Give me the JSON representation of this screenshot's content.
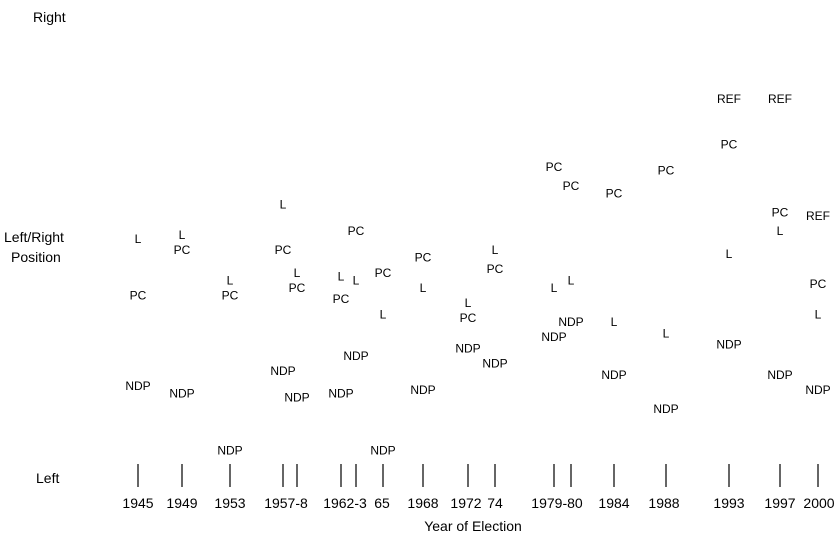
{
  "labels": {
    "right": "Right",
    "middle_line1": "Left/Right",
    "middle_line2": "Position",
    "left": "Left",
    "xlabel": "Year of Election"
  },
  "chart_data": {
    "type": "scatter",
    "title": "",
    "xlabel": "Year of Election",
    "ylabel": "Left/Right Position",
    "y_axis_anchors": [
      "Left",
      "Right"
    ],
    "ylim": [
      0,
      100
    ],
    "elections": [
      {
        "label": "1945",
        "points": [
          {
            "party": "L",
            "y": 58
          },
          {
            "party": "PC",
            "y": 43
          },
          {
            "party": "NDP",
            "y": 19
          }
        ]
      },
      {
        "label": "1949",
        "points": [
          {
            "party": "L",
            "y": 59
          },
          {
            "party": "PC",
            "y": 55
          },
          {
            "party": "NDP",
            "y": 17
          }
        ]
      },
      {
        "label": "1953",
        "points": [
          {
            "party": "L",
            "y": 47
          },
          {
            "party": "PC",
            "y": 43
          },
          {
            "party": "NDP",
            "y": 2
          }
        ]
      },
      {
        "label": "1957",
        "points": [
          {
            "party": "L",
            "y": 67
          },
          {
            "party": "PC",
            "y": 55
          },
          {
            "party": "NDP",
            "y": 23
          }
        ]
      },
      {
        "label": "1958",
        "points": [
          {
            "party": "L",
            "y": 49
          },
          {
            "party": "PC",
            "y": 45
          },
          {
            "party": "NDP",
            "y": 16
          }
        ]
      },
      {
        "label": "1962",
        "points": [
          {
            "party": "L",
            "y": 48
          },
          {
            "party": "PC",
            "y": 42
          },
          {
            "party": "NDP",
            "y": 17
          }
        ]
      },
      {
        "label": "1963",
        "points": [
          {
            "party": "L",
            "y": 47
          },
          {
            "party": "PC",
            "y": 60
          },
          {
            "party": "NDP",
            "y": 27
          }
        ]
      },
      {
        "label": "1965",
        "points": [
          {
            "party": "L",
            "y": 38
          },
          {
            "party": "PC",
            "y": 49
          },
          {
            "party": "NDP",
            "y": 2
          }
        ]
      },
      {
        "label": "1968",
        "points": [
          {
            "party": "L",
            "y": 45
          },
          {
            "party": "PC",
            "y": 53
          },
          {
            "party": "NDP",
            "y": 18
          }
        ]
      },
      {
        "label": "1972",
        "points": [
          {
            "party": "L",
            "y": 41
          },
          {
            "party": "PC",
            "y": 37
          },
          {
            "party": "NDP",
            "y": 29
          }
        ]
      },
      {
        "label": "1974",
        "points": [
          {
            "party": "L",
            "y": 55
          },
          {
            "party": "PC",
            "y": 50
          },
          {
            "party": "NDP",
            "y": 25
          }
        ]
      },
      {
        "label": "1979",
        "points": [
          {
            "party": "L",
            "y": 45
          },
          {
            "party": "PC",
            "y": 77
          },
          {
            "party": "NDP",
            "y": 32
          }
        ]
      },
      {
        "label": "1980",
        "points": [
          {
            "party": "L",
            "y": 47
          },
          {
            "party": "PC",
            "y": 72
          },
          {
            "party": "NDP",
            "y": 36
          }
        ]
      },
      {
        "label": "1984",
        "points": [
          {
            "party": "L",
            "y": 36
          },
          {
            "party": "PC",
            "y": 70
          },
          {
            "party": "NDP",
            "y": 22
          }
        ]
      },
      {
        "label": "1988",
        "points": [
          {
            "party": "L",
            "y": 33
          },
          {
            "party": "PC",
            "y": 76
          },
          {
            "party": "NDP",
            "y": 13
          }
        ]
      },
      {
        "label": "1993",
        "points": [
          {
            "party": "REF",
            "y": 95
          },
          {
            "party": "PC",
            "y": 83
          },
          {
            "party": "L",
            "y": 54
          },
          {
            "party": "NDP",
            "y": 30
          }
        ]
      },
      {
        "label": "1997",
        "points": [
          {
            "party": "REF",
            "y": 95
          },
          {
            "party": "PC",
            "y": 65
          },
          {
            "party": "L",
            "y": 60
          },
          {
            "party": "NDP",
            "y": 22
          }
        ]
      },
      {
        "label": "2000",
        "points": [
          {
            "party": "REF",
            "y": 64
          },
          {
            "party": "PC",
            "y": 46
          },
          {
            "party": "L",
            "y": 38
          },
          {
            "party": "NDP",
            "y": 18
          }
        ]
      }
    ],
    "tick_labels": [
      "1945",
      "1949",
      "1953",
      "1957-8",
      "1962-3",
      "65",
      "1968",
      "1972",
      "74",
      "1979-80",
      "1984",
      "1988",
      "1993",
      "1997",
      "2000"
    ],
    "grid": false,
    "legend": "none"
  }
}
